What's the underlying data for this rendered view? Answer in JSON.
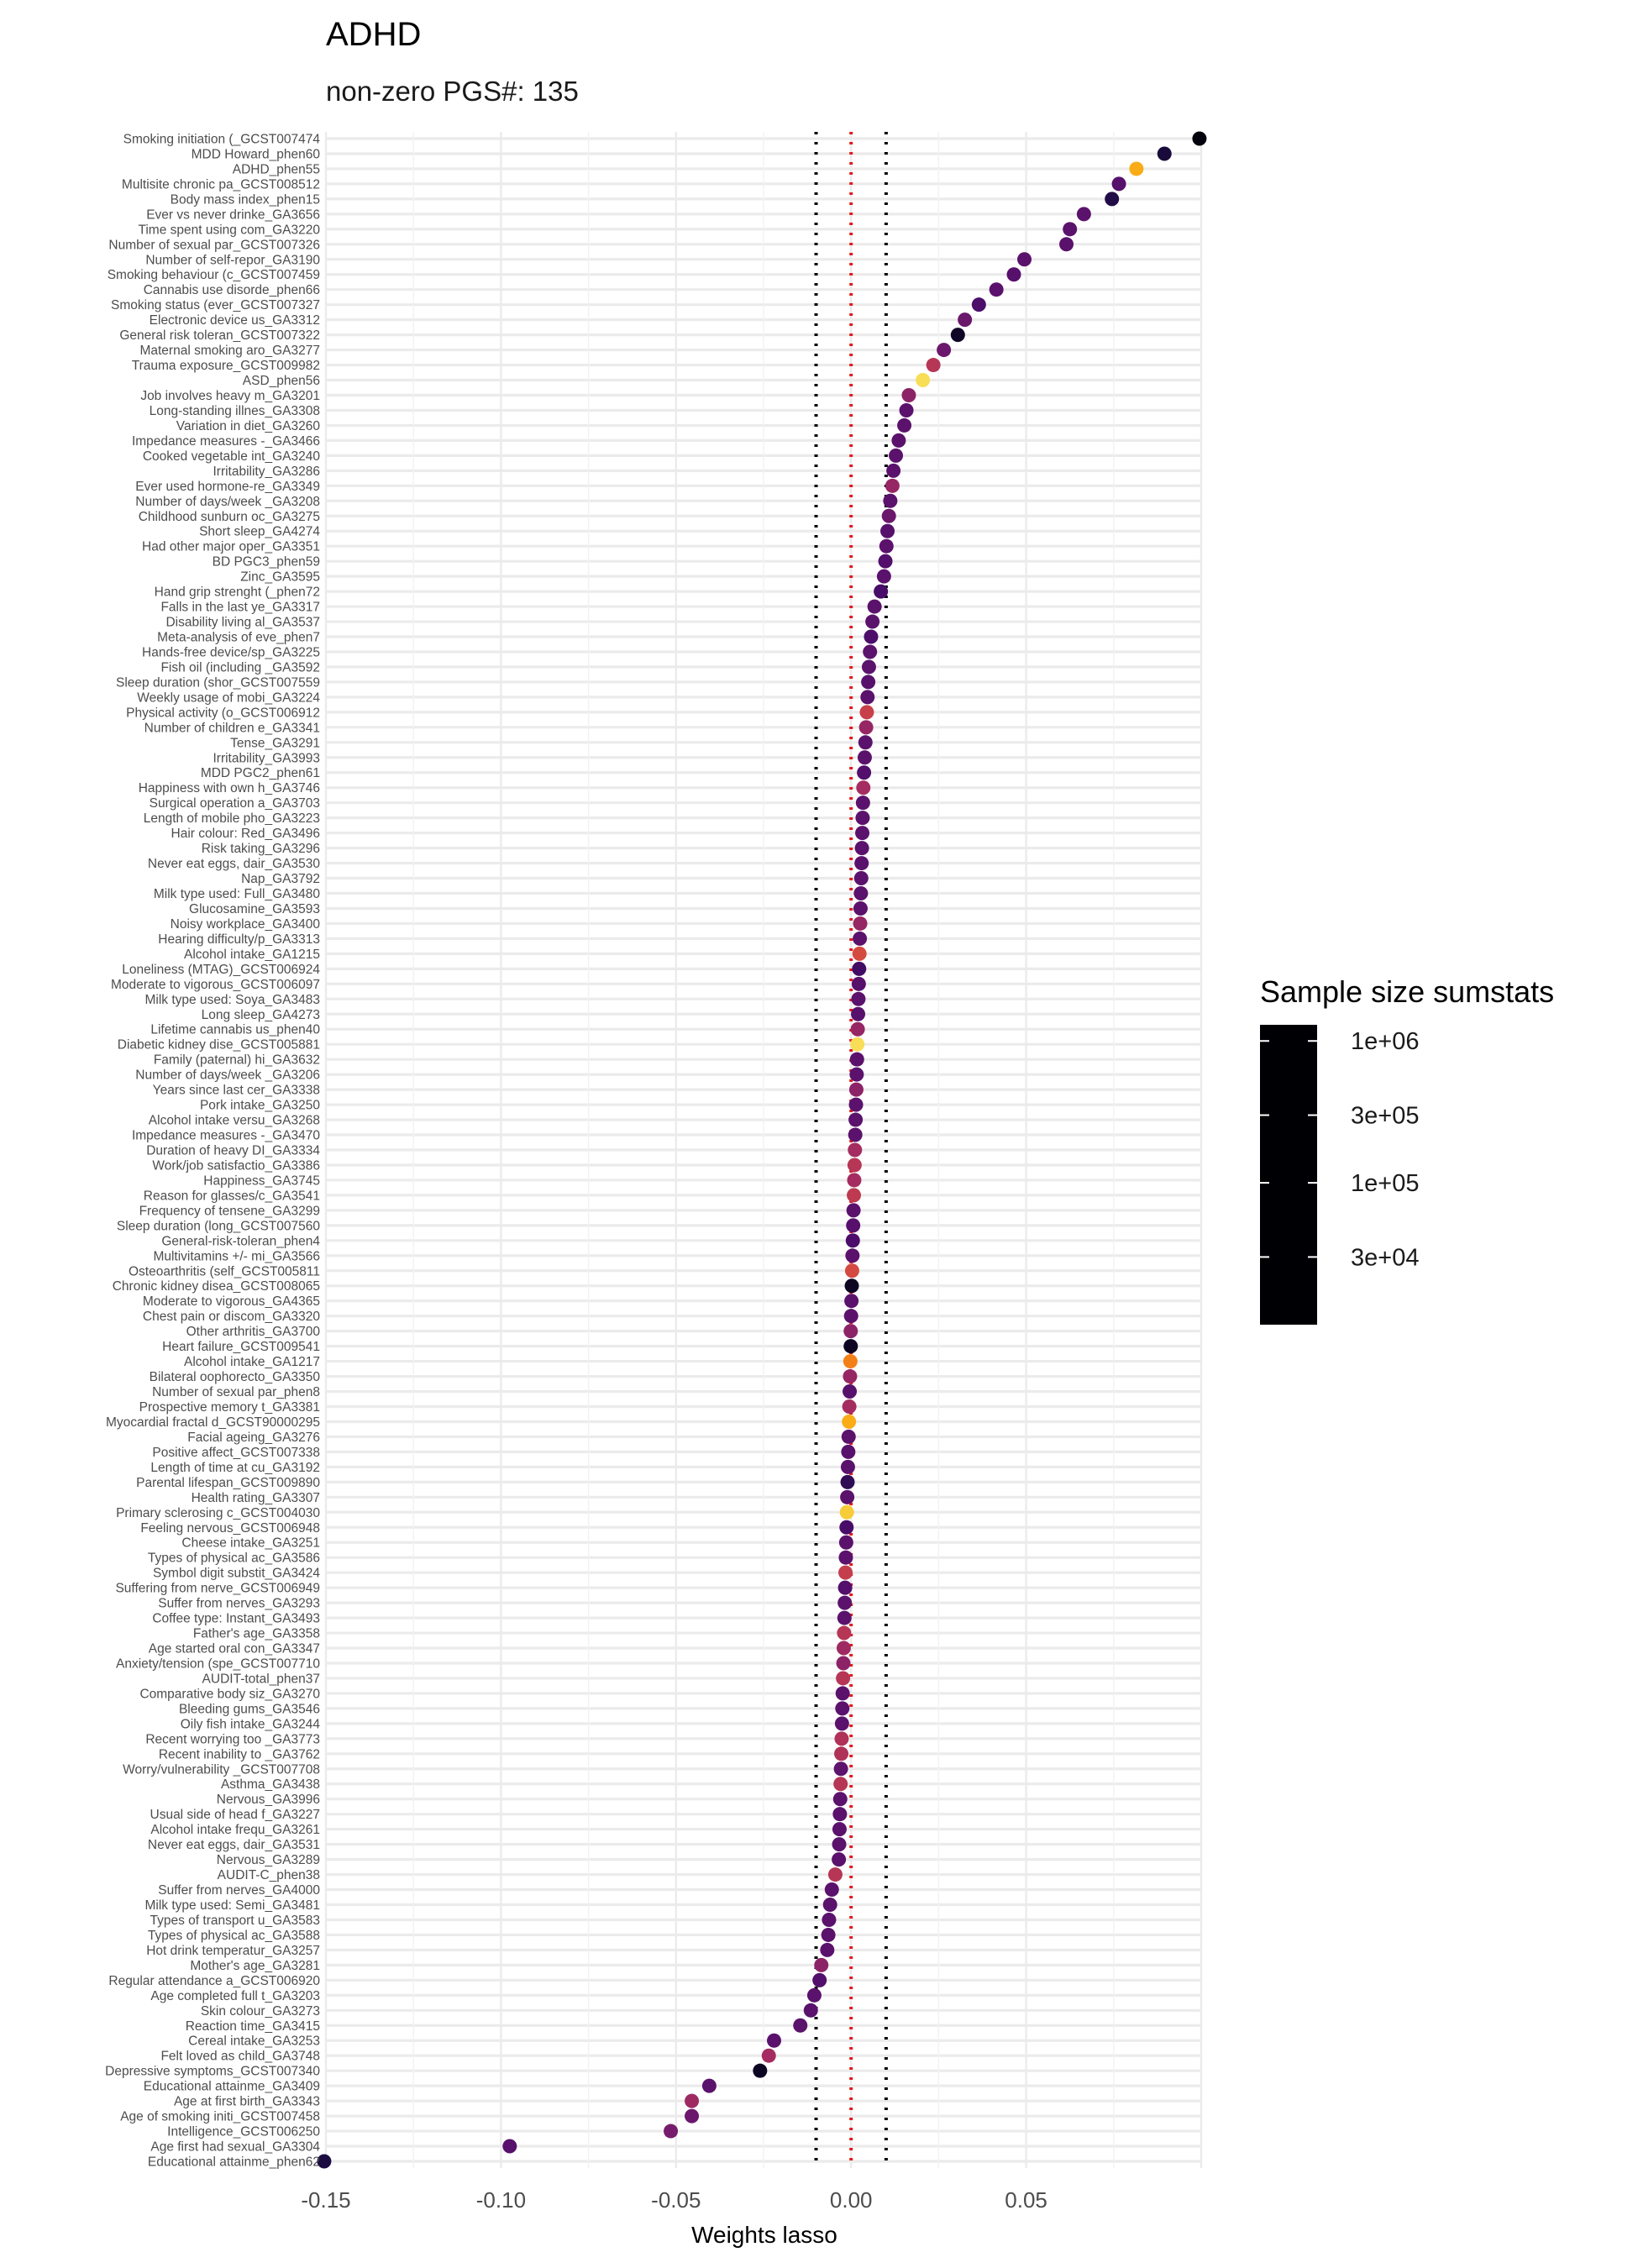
{
  "chart_data": {
    "type": "scatter",
    "title": "ADHD",
    "subtitle": "non-zero PGS#: 135",
    "xlabel": "Weights lasso",
    "ylabel": "",
    "xlim": [
      -0.15,
      0.1
    ],
    "x_ticks": [
      "-0.15",
      "-0.10",
      "-0.05",
      "0.00",
      "0.05"
    ],
    "x_tick_values": [
      -0.15,
      -0.1,
      -0.05,
      0,
      0.05
    ],
    "grid": true,
    "reference_lines": {
      "zero": 0,
      "lower": -0.01,
      "upper": 0.01
    },
    "reference_colors": {
      "zero": "#e41a1c",
      "bounds": "#000000"
    },
    "legend": {
      "title": "Sample size sumstats",
      "placement": "right",
      "labels": [
        "1e+06",
        "3e+05",
        "1e+05",
        "3e+04"
      ],
      "label_values": [
        1000000,
        300000,
        100000,
        30000
      ],
      "range": [
        10000,
        1300000
      ],
      "colormap": "magma",
      "colors": [
        "#000004",
        "#1b0c41",
        "#4a0c6b",
        "#781c6d",
        "#a52c60",
        "#cf4446",
        "#ed6925",
        "#fb9b06",
        "#f7d13d",
        "#fcffa4"
      ]
    },
    "points": [
      {
        "label": "Smoking initiation (_GCST007474",
        "x": 0.0995,
        "n": 1200000
      },
      {
        "label": "MDD Howard_phen60",
        "x": 0.0895,
        "n": 800000
      },
      {
        "label": "ADHD_phen55",
        "x": 0.0815,
        "n": 25000
      },
      {
        "label": "Multisite chronic pa_GCST008512",
        "x": 0.0765,
        "n": 380000
      },
      {
        "label": "Body mass index_phen15",
        "x": 0.0745,
        "n": 700000
      },
      {
        "label": "Ever vs never drinke_GA3656",
        "x": 0.0665,
        "n": 360000
      },
      {
        "label": "Time spent using com_GA3220",
        "x": 0.0625,
        "n": 360000
      },
      {
        "label": "Number of sexual par_GCST007326",
        "x": 0.0615,
        "n": 370000
      },
      {
        "label": "Number of self-repor_GA3190",
        "x": 0.0495,
        "n": 360000
      },
      {
        "label": "Smoking behaviour (c_GCST007459",
        "x": 0.0465,
        "n": 380000
      },
      {
        "label": "Cannabis use disorde_phen66",
        "x": 0.0415,
        "n": 360000
      },
      {
        "label": "Smoking status (ever_GCST007327",
        "x": 0.0365,
        "n": 430000
      },
      {
        "label": "Electronic device us_GA3312",
        "x": 0.0325,
        "n": 300000
      },
      {
        "label": "General risk toleran_GCST007322",
        "x": 0.0305,
        "n": 950000
      },
      {
        "label": "Maternal smoking aro_GA3277",
        "x": 0.0265,
        "n": 300000
      },
      {
        "label": "Trauma exposure_GCST009982",
        "x": 0.0235,
        "n": 120000
      },
      {
        "label": "ASD_phen56",
        "x": 0.0205,
        "n": 15000
      },
      {
        "label": "Job involves heavy m_GA3201",
        "x": 0.0165,
        "n": 200000
      },
      {
        "label": "Long-standing illnes_GA3308",
        "x": 0.0158,
        "n": 360000
      },
      {
        "label": "Variation in diet_GA3260",
        "x": 0.0152,
        "n": 360000
      },
      {
        "label": "Impedance measures -_GA3466",
        "x": 0.0136,
        "n": 360000
      },
      {
        "label": "Cooked vegetable int_GA3240",
        "x": 0.0128,
        "n": 360000
      },
      {
        "label": "Irritability_GA3286",
        "x": 0.0121,
        "n": 360000
      },
      {
        "label": "Ever used hormone-re_GA3349",
        "x": 0.0118,
        "n": 180000
      },
      {
        "label": "Number of days/week _GA3208",
        "x": 0.0112,
        "n": 360000
      },
      {
        "label": "Childhood sunburn oc_GA3275",
        "x": 0.0108,
        "n": 300000
      },
      {
        "label": "Short sleep_GA4274",
        "x": 0.0104,
        "n": 380000
      },
      {
        "label": "Had other major oper_GA3351",
        "x": 0.0101,
        "n": 360000
      },
      {
        "label": "BD PGC3_phen59",
        "x": 0.0098,
        "n": 400000
      },
      {
        "label": "Zinc_GA3595",
        "x": 0.0094,
        "n": 360000
      },
      {
        "label": "Hand grip strenght (_phen72",
        "x": 0.0085,
        "n": 450000
      },
      {
        "label": "Falls in the last ye_GA3317",
        "x": 0.0067,
        "n": 360000
      },
      {
        "label": "Disability living al_GA3537",
        "x": 0.0061,
        "n": 360000
      },
      {
        "label": "Meta-analysis of eve_phen7",
        "x": 0.0057,
        "n": 430000
      },
      {
        "label": "Hands-free device/sp_GA3225",
        "x": 0.0054,
        "n": 360000
      },
      {
        "label": "Fish oil (including _GA3592",
        "x": 0.0051,
        "n": 360000
      },
      {
        "label": "Sleep duration (shor_GCST007559",
        "x": 0.0049,
        "n": 380000
      },
      {
        "label": "Weekly usage of mobi_GA3224",
        "x": 0.0047,
        "n": 360000
      },
      {
        "label": "Physical activity (o_GCST006912",
        "x": 0.0045,
        "n": 95000
      },
      {
        "label": "Number of children e_GA3341",
        "x": 0.0043,
        "n": 180000
      },
      {
        "label": "Tense_GA3291",
        "x": 0.0041,
        "n": 360000
      },
      {
        "label": "Irritability_GA3993",
        "x": 0.0039,
        "n": 360000
      },
      {
        "label": "MDD PGC2_phen61",
        "x": 0.0037,
        "n": 400000
      },
      {
        "label": "Happiness with own h_GA3746",
        "x": 0.0035,
        "n": 150000
      },
      {
        "label": "Surgical operation a_GA3703",
        "x": 0.0034,
        "n": 360000
      },
      {
        "label": "Length of mobile pho_GA3223",
        "x": 0.0033,
        "n": 360000
      },
      {
        "label": "Hair colour: Red_GA3496",
        "x": 0.0032,
        "n": 360000
      },
      {
        "label": "Risk taking_GA3296",
        "x": 0.0031,
        "n": 360000
      },
      {
        "label": "Never eat eggs, dair_GA3530",
        "x": 0.003,
        "n": 360000
      },
      {
        "label": "Nap_GA3792",
        "x": 0.0029,
        "n": 360000
      },
      {
        "label": "Milk type used: Full_GA3480",
        "x": 0.0028,
        "n": 360000
      },
      {
        "label": "Glucosamine_GA3593",
        "x": 0.0027,
        "n": 360000
      },
      {
        "label": "Noisy workplace_GA3400",
        "x": 0.0026,
        "n": 180000
      },
      {
        "label": "Hearing difficulty/p_GA3313",
        "x": 0.0025,
        "n": 360000
      },
      {
        "label": "Alcohol intake_GA1215",
        "x": 0.0024,
        "n": 80000
      },
      {
        "label": "Loneliness (MTAG)_GCST006924",
        "x": 0.0023,
        "n": 480000
      },
      {
        "label": "Moderate to vigorous_GCST006097",
        "x": 0.0022,
        "n": 380000
      },
      {
        "label": "Milk type used: Soya_GA3483",
        "x": 0.0021,
        "n": 360000
      },
      {
        "label": "Long sleep_GA4273",
        "x": 0.002,
        "n": 380000
      },
      {
        "label": "Lifetime cannabis us_phen40",
        "x": 0.0019,
        "n": 180000
      },
      {
        "label": "Diabetic kidney dise_GCST005881",
        "x": 0.0018,
        "n": 15000
      },
      {
        "label": "Family (paternal) hi_GA3632",
        "x": 0.0017,
        "n": 360000
      },
      {
        "label": "Number of days/week _GA3206",
        "x": 0.0016,
        "n": 360000
      },
      {
        "label": "Years since last cer_GA3338",
        "x": 0.0015,
        "n": 200000
      },
      {
        "label": "Pork intake_GA3250",
        "x": 0.0014,
        "n": 360000
      },
      {
        "label": "Alcohol intake versu_GA3268",
        "x": 0.0013,
        "n": 360000
      },
      {
        "label": "Impedance measures -_GA3470",
        "x": 0.0012,
        "n": 360000
      },
      {
        "label": "Duration of heavy DI_GA3334",
        "x": 0.0011,
        "n": 150000
      },
      {
        "label": "Work/job satisfactio_GA3386",
        "x": 0.001,
        "n": 120000
      },
      {
        "label": "Happiness_GA3745",
        "x": 0.0009,
        "n": 150000
      },
      {
        "label": "Reason for glasses/c_GA3541",
        "x": 0.0008,
        "n": 110000
      },
      {
        "label": "Frequency of tensene_GA3299",
        "x": 0.0007,
        "n": 360000
      },
      {
        "label": "Sleep duration (long_GCST007560",
        "x": 0.0006,
        "n": 380000
      },
      {
        "label": "General-risk-toleran_phen4",
        "x": 0.0005,
        "n": 430000
      },
      {
        "label": "Multivitamins +/- mi_GA3566",
        "x": 0.0004,
        "n": 360000
      },
      {
        "label": "Osteoarthritis (self_GCST005811",
        "x": 0.0003,
        "n": 80000
      },
      {
        "label": "Chronic kidney disea_GCST008065",
        "x": 0.0002,
        "n": 1000000
      },
      {
        "label": "Moderate to vigorous_GA4365",
        "x": 0.0001,
        "n": 360000
      },
      {
        "label": "Chest pain or discom_GA3320",
        "x": 0.0,
        "n": 360000
      },
      {
        "label": "Other arthritis_GA3700",
        "x": -0.0001,
        "n": 200000
      },
      {
        "label": "Heart failure_GCST009541",
        "x": -0.0001,
        "n": 1000000
      },
      {
        "label": "Alcohol intake_GA1217",
        "x": -0.0002,
        "n": 40000
      },
      {
        "label": "Bilateral oophorecto_GA3350",
        "x": -0.0003,
        "n": 180000
      },
      {
        "label": "Number of sexual par_phen8",
        "x": -0.0004,
        "n": 380000
      },
      {
        "label": "Prospective memory t_GA3381",
        "x": -0.0005,
        "n": 150000
      },
      {
        "label": "Myocardial fractal d_GCST90000295",
        "x": -0.0006,
        "n": 25000
      },
      {
        "label": "Facial ageing_GA3276",
        "x": -0.0007,
        "n": 360000
      },
      {
        "label": "Positive affect_GCST007338",
        "x": -0.0008,
        "n": 380000
      },
      {
        "label": "Length of time at cu_GA3192",
        "x": -0.0009,
        "n": 360000
      },
      {
        "label": "Parental lifespan_GCST009890",
        "x": -0.001,
        "n": 600000
      },
      {
        "label": "Health rating_GA3307",
        "x": -0.0011,
        "n": 360000
      },
      {
        "label": "Primary sclerosing c_GCST004030",
        "x": -0.0012,
        "n": 18000
      },
      {
        "label": "Feeling nervous_GCST006948",
        "x": -0.0013,
        "n": 450000
      },
      {
        "label": "Cheese intake_GA3251",
        "x": -0.0014,
        "n": 360000
      },
      {
        "label": "Types of physical ac_GA3586",
        "x": -0.0015,
        "n": 360000
      },
      {
        "label": "Symbol digit substit_GA3424",
        "x": -0.0016,
        "n": 100000
      },
      {
        "label": "Suffering from nerve_GCST006949",
        "x": -0.0017,
        "n": 400000
      },
      {
        "label": "Suffer from nerves_GA3293",
        "x": -0.0018,
        "n": 360000
      },
      {
        "label": "Coffee type: Instant_GA3493",
        "x": -0.0019,
        "n": 360000
      },
      {
        "label": "Father's age_GA3358",
        "x": -0.002,
        "n": 120000
      },
      {
        "label": "Age started oral con_GA3347",
        "x": -0.0021,
        "n": 160000
      },
      {
        "label": "Anxiety/tension (spe_GCST007710",
        "x": -0.0022,
        "n": 200000
      },
      {
        "label": "AUDIT-total_phen37",
        "x": -0.0023,
        "n": 120000
      },
      {
        "label": "Comparative body siz_GA3270",
        "x": -0.0024,
        "n": 360000
      },
      {
        "label": "Bleeding gums_GA3546",
        "x": -0.0025,
        "n": 360000
      },
      {
        "label": "Oily fish intake_GA3244",
        "x": -0.0026,
        "n": 360000
      },
      {
        "label": "Recent worrying too _GA3773",
        "x": -0.0027,
        "n": 130000
      },
      {
        "label": "Recent inability to _GA3762",
        "x": -0.0028,
        "n": 130000
      },
      {
        "label": "Worry/vulnerability _GCST007708",
        "x": -0.0029,
        "n": 350000
      },
      {
        "label": "Asthma_GA3438",
        "x": -0.003,
        "n": 120000
      },
      {
        "label": "Nervous_GA3996",
        "x": -0.0031,
        "n": 360000
      },
      {
        "label": "Usual side of head f_GA3227",
        "x": -0.0032,
        "n": 360000
      },
      {
        "label": "Alcohol intake frequ_GA3261",
        "x": -0.0033,
        "n": 360000
      },
      {
        "label": "Never eat eggs, dair_GA3531",
        "x": -0.0034,
        "n": 360000
      },
      {
        "label": "Nervous_GA3289",
        "x": -0.0035,
        "n": 360000
      },
      {
        "label": "AUDIT-C_phen38",
        "x": -0.0045,
        "n": 120000
      },
      {
        "label": "Suffer from nerves_GA4000",
        "x": -0.0055,
        "n": 360000
      },
      {
        "label": "Milk type used: Semi_GA3481",
        "x": -0.006,
        "n": 360000
      },
      {
        "label": "Types of transport u_GA3583",
        "x": -0.0063,
        "n": 360000
      },
      {
        "label": "Types of physical ac_GA3588",
        "x": -0.0065,
        "n": 360000
      },
      {
        "label": "Hot drink temperatur_GA3257",
        "x": -0.0068,
        "n": 360000
      },
      {
        "label": "Mother's age_GA3281",
        "x": -0.0085,
        "n": 200000
      },
      {
        "label": "Regular attendance a_GCST006920",
        "x": -0.009,
        "n": 400000
      },
      {
        "label": "Age completed full t_GA3203",
        "x": -0.0105,
        "n": 360000
      },
      {
        "label": "Skin colour_GA3273",
        "x": -0.0115,
        "n": 360000
      },
      {
        "label": "Reaction time_GA3415",
        "x": -0.0145,
        "n": 360000
      },
      {
        "label": "Cereal intake_GA3253",
        "x": -0.022,
        "n": 360000
      },
      {
        "label": "Felt loved as child_GA3748",
        "x": -0.0235,
        "n": 150000
      },
      {
        "label": "Depressive symptoms_GCST007340",
        "x": -0.026,
        "n": 1000000
      },
      {
        "label": "Educational attainme_GA3409",
        "x": -0.0405,
        "n": 360000
      },
      {
        "label": "Age at first birth_GA3343",
        "x": -0.0455,
        "n": 160000
      },
      {
        "label": "Age of smoking initi_GCST007458",
        "x": -0.0455,
        "n": 300000
      },
      {
        "label": "Intelligence_GCST006250",
        "x": -0.0515,
        "n": 260000
      },
      {
        "label": "Age first had sexual_GA3304",
        "x": -0.0975,
        "n": 380000
      },
      {
        "label": "Educational attainme_phen62",
        "x": -0.1505,
        "n": 750000
      }
    ]
  }
}
